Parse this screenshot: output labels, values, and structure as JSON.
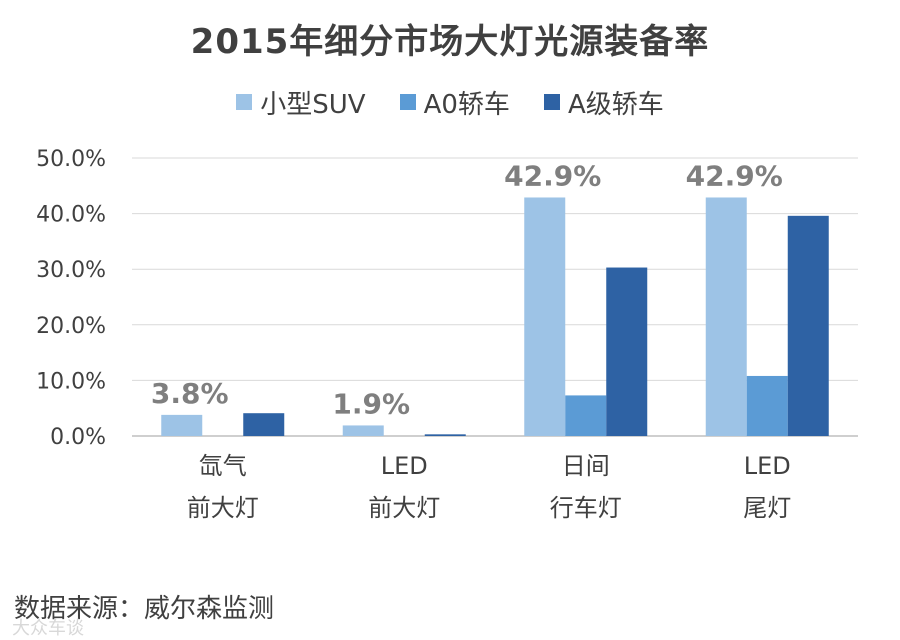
{
  "chart_data": {
    "type": "bar",
    "title": "2015年细分市场大灯光源装备率",
    "categories": [
      [
        "氙气",
        "前大灯"
      ],
      [
        "LED",
        "前大灯"
      ],
      [
        "日间",
        "行车灯"
      ],
      [
        "LED",
        "尾灯"
      ]
    ],
    "series": [
      {
        "name": "小型SUV",
        "values": [
          3.8,
          1.9,
          42.9,
          42.9
        ],
        "color": "#9dc3e6"
      },
      {
        "name": "A0轿车",
        "values": [
          0.0,
          0.0,
          7.3,
          10.8
        ],
        "color": "#5b9bd5"
      },
      {
        "name": "A级轿车",
        "values": [
          4.1,
          0.3,
          30.3,
          39.6
        ],
        "color": "#2e62a4"
      }
    ],
    "data_labels": [
      {
        "category": 0,
        "series": 0,
        "text": "3.8%"
      },
      {
        "category": 1,
        "series": 0,
        "text": "1.9%"
      },
      {
        "category": 2,
        "series": 0,
        "text": "42.9%"
      },
      {
        "category": 3,
        "series": 0,
        "text": "42.9%"
      }
    ],
    "ylim": [
      0,
      50
    ],
    "yticks": [
      "0.0%",
      "10.0%",
      "20.0%",
      "30.0%",
      "40.0%",
      "50.0%"
    ],
    "grid": true,
    "legend_position": "top"
  },
  "source_note": "数据来源：威尔森监测",
  "watermark": "大众车谈"
}
